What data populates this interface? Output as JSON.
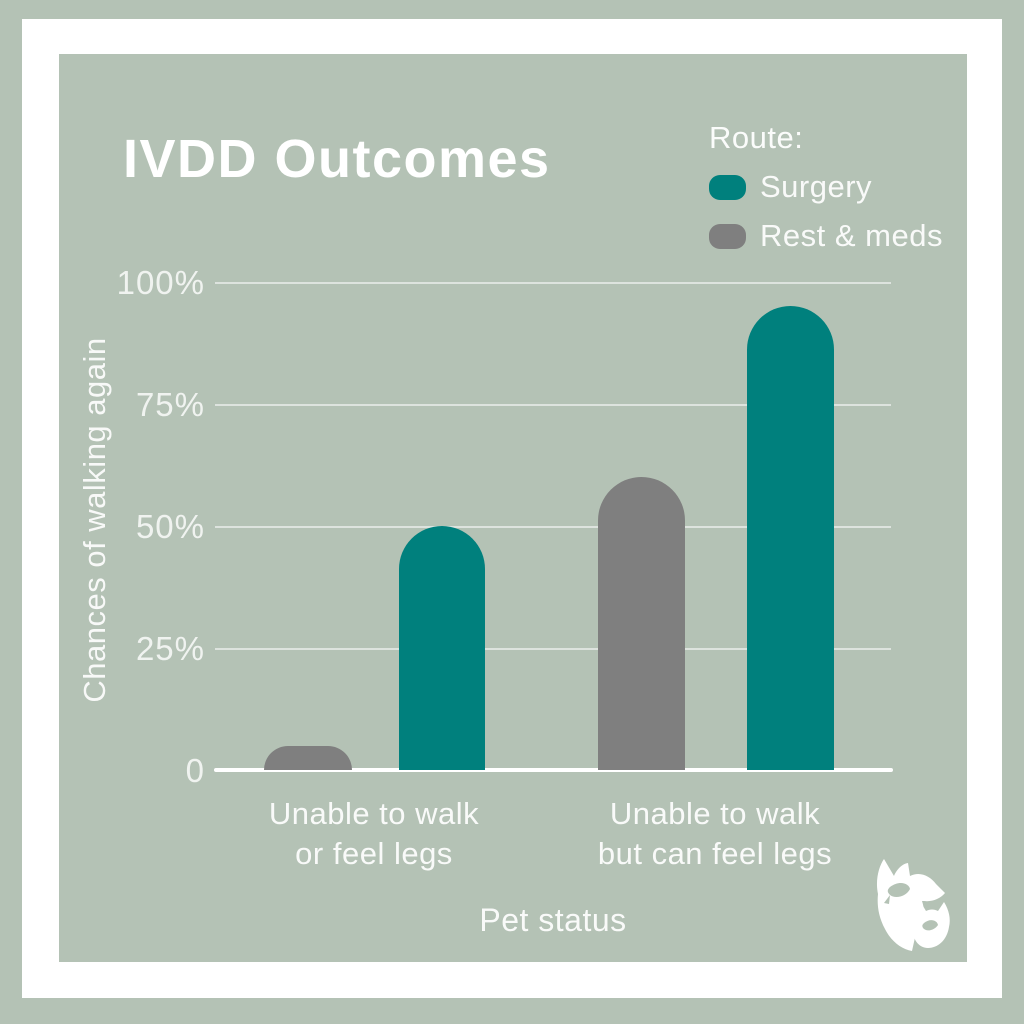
{
  "title": "IVDD Outcomes",
  "legend": {
    "title": "Route:",
    "items": [
      {
        "label": "Surgery",
        "color": "#00807d"
      },
      {
        "label": "Rest & meds",
        "color": "#7f7f7f"
      }
    ]
  },
  "y_axis": {
    "title": "Chances of walking again",
    "ticks": [
      "100%",
      "75%",
      "50%",
      "25%",
      "0"
    ]
  },
  "x_axis": {
    "title": "Pet status",
    "categories": [
      {
        "line1": "Unable to walk",
        "line2": "or feel legs"
      },
      {
        "line1": "Unable to walk",
        "line2": "but can feel legs"
      }
    ]
  },
  "chart_data": {
    "type": "bar",
    "title": "IVDD Outcomes",
    "xlabel": "Pet status",
    "ylabel": "Chances of walking again",
    "categories": [
      "Unable to walk or feel legs",
      "Unable to walk but can feel legs"
    ],
    "series": [
      {
        "name": "Rest & meds",
        "color": "#7f7f7f",
        "values": [
          5,
          60
        ]
      },
      {
        "name": "Surgery",
        "color": "#00807d",
        "values": [
          50,
          95
        ]
      }
    ],
    "ylim": [
      0,
      100
    ],
    "yticks": [
      0,
      25,
      50,
      75,
      100
    ],
    "grid": true,
    "legend_position": "top-right",
    "bar_order_in_group": [
      "Rest & meds",
      "Surgery"
    ],
    "rounded_bar_tops": true
  },
  "colors": {
    "background": "#b4c2b5",
    "frame": "#ffffff",
    "text": "#ffffff",
    "gridline": "rgba(255,255,255,0.55)"
  },
  "logo_icon": "dog-and-cat-icon"
}
